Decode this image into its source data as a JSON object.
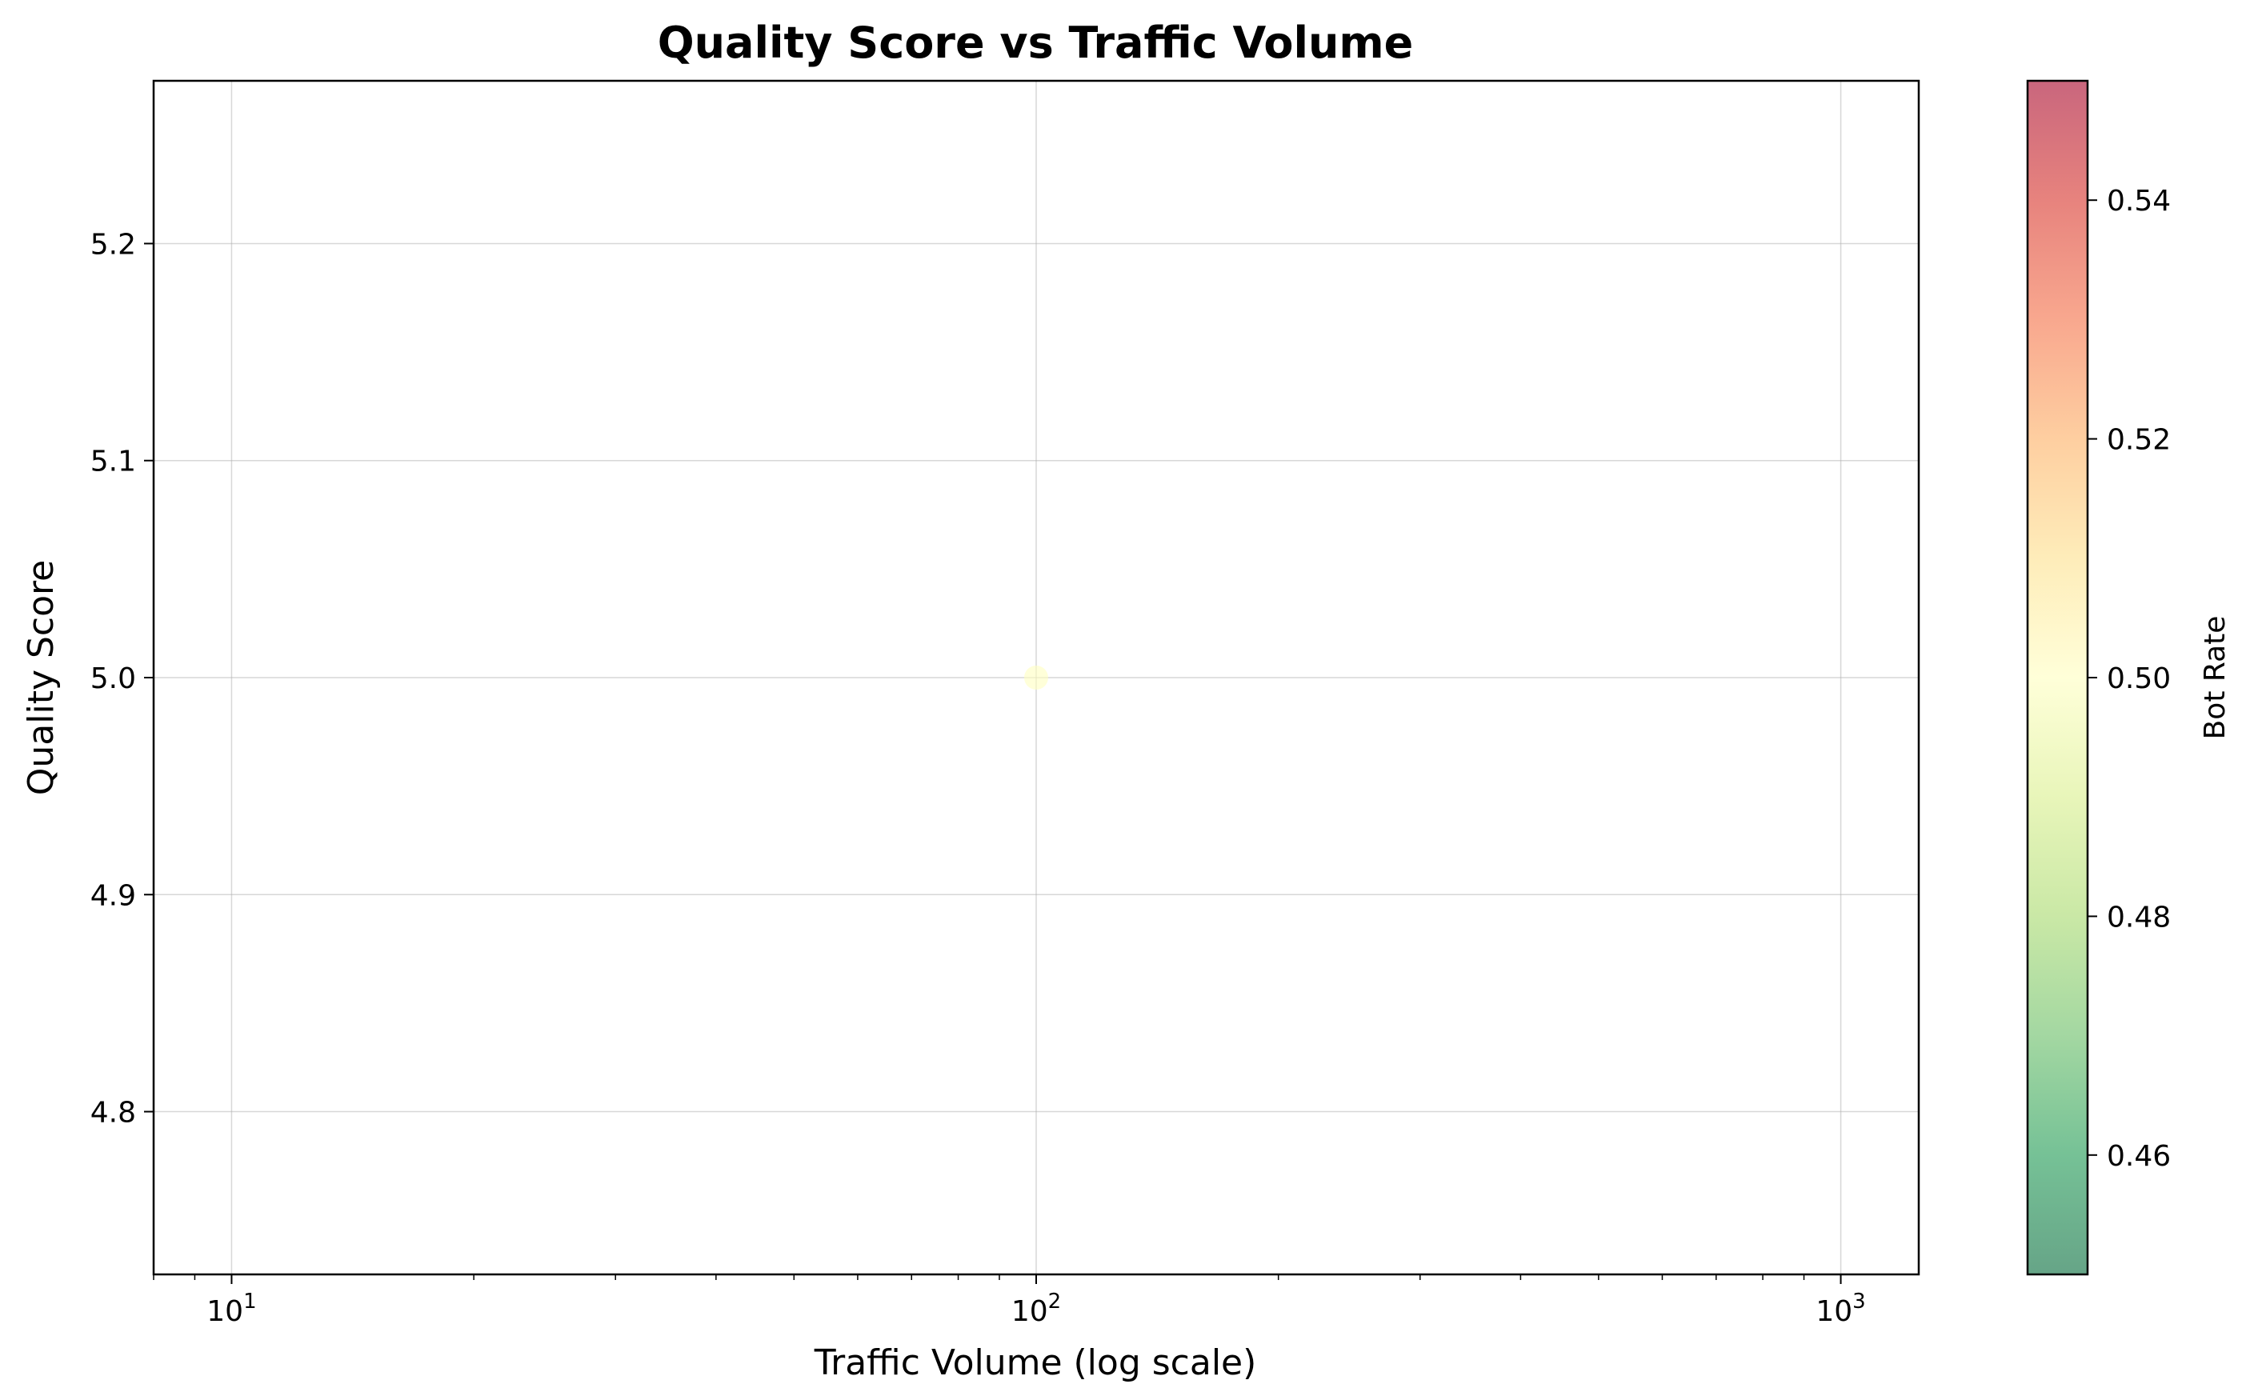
{
  "chart_data": {
    "type": "scatter",
    "title": "Quality Score vs Traffic Volume",
    "xlabel": "Traffic Volume (log scale)",
    "ylabel": "Quality Score",
    "xscale": "log",
    "xlim": [
      8,
      1250
    ],
    "ylim": [
      4.725,
      5.275
    ],
    "xticks": [
      {
        "value": 10,
        "base": "10",
        "exp": "1"
      },
      {
        "value": 100,
        "base": "10",
        "exp": "2"
      },
      {
        "value": 1000,
        "base": "10",
        "exp": "3"
      }
    ],
    "yticks": [
      4.8,
      4.9,
      5.0,
      5.1,
      5.2
    ],
    "grid": true,
    "points": [
      {
        "x": 100,
        "y": 5.0,
        "bot_rate": 0.5
      }
    ],
    "colorbar": {
      "label": "Bot Rate",
      "range": [
        0.45,
        0.55
      ],
      "ticks": [
        "0.46",
        "0.48",
        "0.50",
        "0.52",
        "0.54"
      ],
      "colormap": "RdYlGn_r",
      "colors": [
        "#006837",
        "#1a9850",
        "#66bd63",
        "#a6d96a",
        "#d9ef8b",
        "#ffffbf",
        "#fee08b",
        "#fdae61",
        "#f46d43",
        "#d73027",
        "#a50026"
      ]
    }
  }
}
